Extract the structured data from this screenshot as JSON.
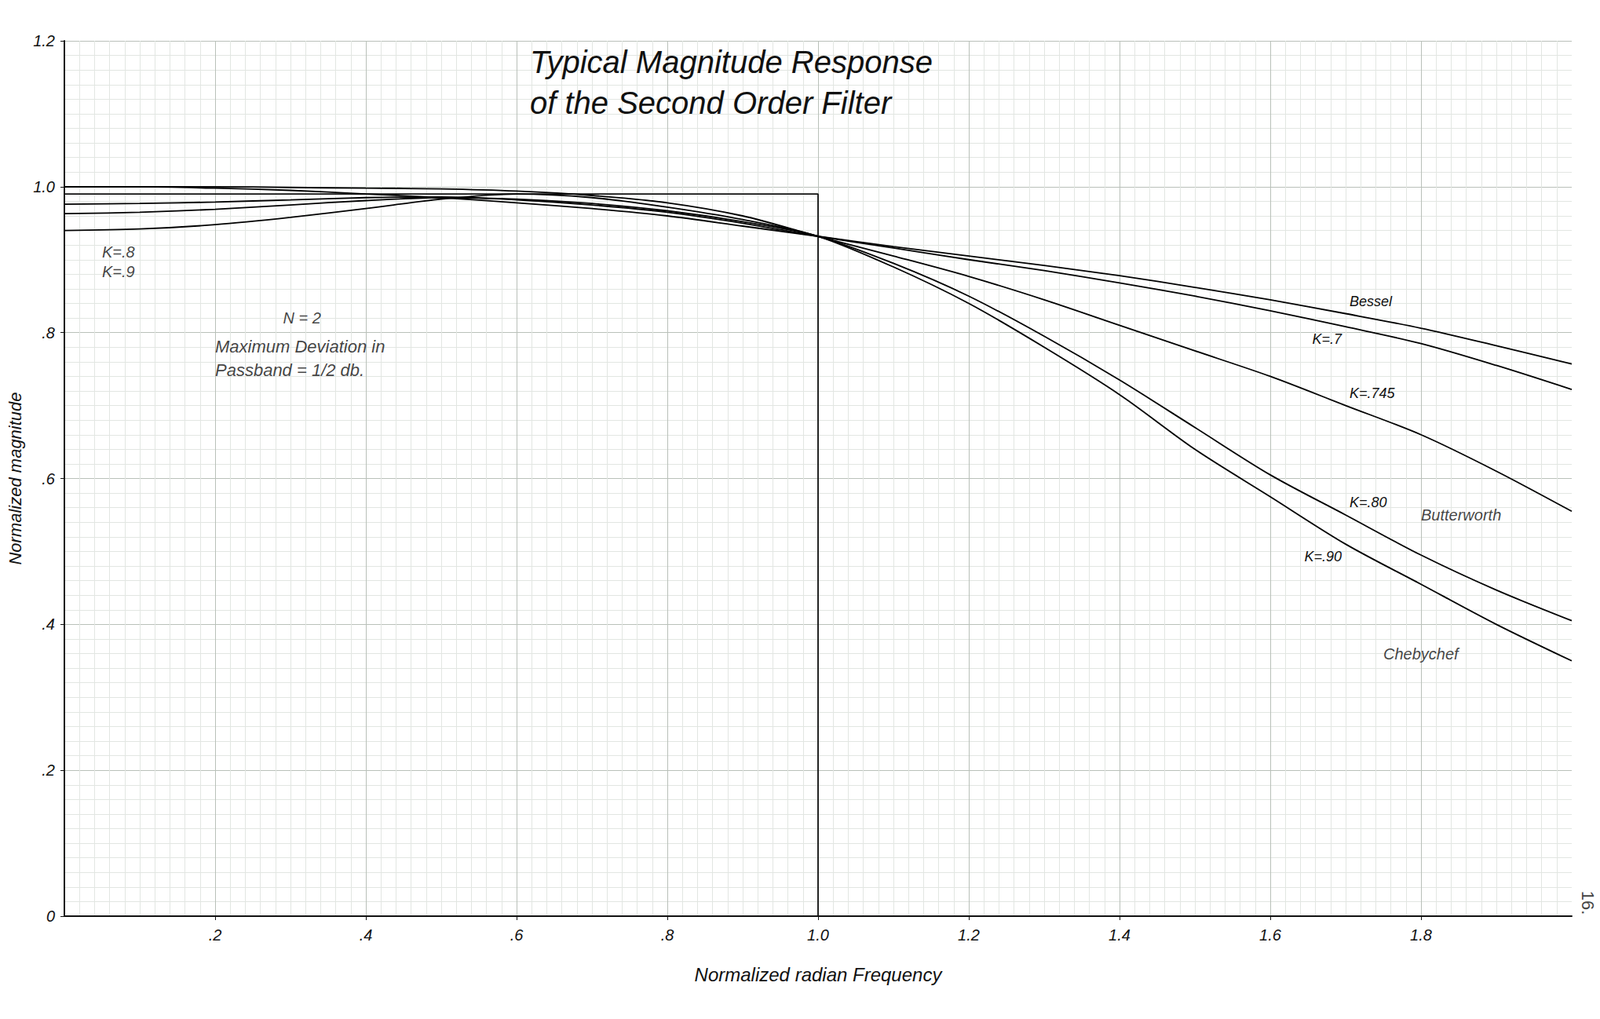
{
  "chart_data": {
    "type": "line",
    "title": "Typical Magnitude Response\nof the Second Order Filter",
    "x_label": "Normalized radian Frequency",
    "y_label": "Normalized magnitude",
    "x": [
      0,
      0.1,
      0.2,
      0.3,
      0.4,
      0.5,
      0.6,
      0.7,
      0.8,
      0.9,
      1.0,
      1.1,
      1.2,
      1.3,
      1.4,
      1.5,
      1.6,
      1.7,
      1.8,
      1.9,
      2.0
    ],
    "series": [
      {
        "name": "Bessel",
        "color": "#000000",
        "line_style": "solid",
        "values": [
          1.0,
          1.0,
          0.998,
          0.995,
          0.99,
          0.985,
          0.978,
          0.97,
          0.96,
          0.946,
          0.932,
          0.918,
          0.905,
          0.892,
          0.878,
          0.862,
          0.845,
          0.826,
          0.806,
          0.782,
          0.757
        ]
      },
      {
        "name": "K=.7",
        "color": "#000000",
        "line_style": "solid",
        "values": [
          0.976,
          0.977,
          0.979,
          0.982,
          0.985,
          0.986,
          0.982,
          0.975,
          0.965,
          0.95,
          0.932,
          0.916,
          0.9,
          0.885,
          0.868,
          0.85,
          0.83,
          0.808,
          0.785,
          0.755,
          0.722
        ]
      },
      {
        "name": "K=.745",
        "color": "#000000",
        "line_style": "solid",
        "values": [
          1.0,
          1.0,
          1.0,
          0.999,
          0.998,
          0.997,
          0.994,
          0.988,
          0.978,
          0.96,
          0.932,
          0.905,
          0.877,
          0.845,
          0.81,
          0.775,
          0.74,
          0.7,
          0.66,
          0.61,
          0.555
        ]
      },
      {
        "name": "K=.80",
        "color": "#000000",
        "line_style": "solid",
        "values": [
          0.963,
          0.965,
          0.969,
          0.975,
          0.981,
          0.985,
          0.983,
          0.977,
          0.967,
          0.952,
          0.932,
          0.895,
          0.85,
          0.795,
          0.735,
          0.67,
          0.605,
          0.55,
          0.495,
          0.447,
          0.405
        ]
      },
      {
        "name": "K=.90",
        "color": "#000000",
        "line_style": "solid",
        "values": [
          0.94,
          0.942,
          0.948,
          0.958,
          0.97,
          0.983,
          0.99,
          0.985,
          0.972,
          0.955,
          0.932,
          0.89,
          0.84,
          0.78,
          0.715,
          0.64,
          0.575,
          0.51,
          0.455,
          0.4,
          0.35
        ]
      }
    ],
    "limit_box": {
      "x": [
        0,
        1.0,
        1.0
      ],
      "y": [
        0.99,
        0.99,
        0
      ]
    },
    "annotations": [
      {
        "text": "N = 2",
        "x": 0.29,
        "y": 0.82
      },
      {
        "text": "Maximum Deviation in\nPassband = 1/2 db.",
        "x": 0.2,
        "y": 0.765
      },
      {
        "text": "K=.8",
        "x": 0.05,
        "y": 0.91
      },
      {
        "text": "K=.9",
        "x": 0.05,
        "y": 0.884
      },
      {
        "text": "Butterworth",
        "x": 1.8,
        "y": 0.55
      },
      {
        "text": "Chebychef",
        "x": 1.75,
        "y": 0.36
      }
    ],
    "page_number": "16.",
    "xlim": [
      0,
      2
    ],
    "ylim": [
      0,
      1.2
    ],
    "xticks": [
      {
        "value": 0.2,
        "label": ".2"
      },
      {
        "value": 0.4,
        "label": ".4"
      },
      {
        "value": 0.6,
        "label": ".6"
      },
      {
        "value": 0.8,
        "label": ".8"
      },
      {
        "value": 1.0,
        "label": "1.0"
      },
      {
        "value": 1.2,
        "label": "1.2"
      },
      {
        "value": 1.4,
        "label": "1.4"
      },
      {
        "value": 1.6,
        "label": "1.6"
      },
      {
        "value": 1.8,
        "label": "1.8"
      }
    ],
    "yticks": [
      0,
      {
        "value": 0.2,
        "label": ".2"
      },
      {
        "value": 0.4,
        "label": ".4"
      },
      {
        "value": 0.6,
        "label": ".6"
      },
      {
        "value": 0.8,
        "label": ".8"
      },
      {
        "value": 1.0,
        "label": "1.0"
      },
      {
        "value": 1.2,
        "label": "1.2"
      }
    ],
    "grid": true
  }
}
